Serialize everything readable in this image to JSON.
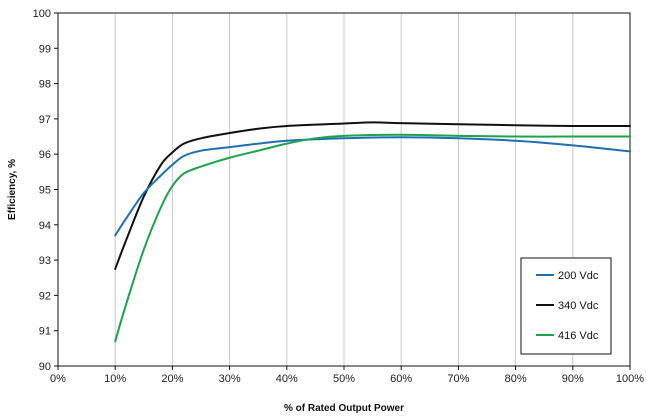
{
  "chart_data": {
    "type": "line",
    "xlabel": "% of Rated Output Power",
    "ylabel": "Efficiency, %",
    "xlim": [
      0,
      100
    ],
    "ylim": [
      90,
      100
    ],
    "xticks": [
      0,
      10,
      20,
      30,
      40,
      50,
      60,
      70,
      80,
      90,
      100
    ],
    "xtick_labels": [
      "0%",
      "10%",
      "20%",
      "30%",
      "40%",
      "50%",
      "60%",
      "70%",
      "80%",
      "90%",
      "100%"
    ],
    "yticks": [
      90,
      91,
      92,
      93,
      94,
      95,
      96,
      97,
      98,
      99,
      100
    ],
    "ytick_labels": [
      "90",
      "91",
      "92",
      "93",
      "94",
      "95",
      "96",
      "97",
      "98",
      "99",
      "100"
    ],
    "grid": "vertical",
    "legend_position": "bottom-right",
    "series": [
      {
        "name": "200 Vdc",
        "color": "#1f6fb5",
        "x": [
          10,
          12,
          15,
          18,
          20,
          22,
          25,
          30,
          35,
          40,
          50,
          60,
          70,
          80,
          90,
          100
        ],
        "y": [
          93.7,
          94.2,
          94.9,
          95.4,
          95.7,
          95.95,
          96.1,
          96.2,
          96.3,
          96.38,
          96.45,
          96.48,
          96.45,
          96.38,
          96.25,
          96.08
        ]
      },
      {
        "name": "340 Vdc",
        "color": "#111111",
        "x": [
          10,
          12,
          15,
          18,
          20,
          22,
          25,
          30,
          35,
          40,
          50,
          55,
          60,
          70,
          80,
          90,
          100
        ],
        "y": [
          92.75,
          93.6,
          94.8,
          95.7,
          96.05,
          96.3,
          96.45,
          96.6,
          96.72,
          96.8,
          96.87,
          96.9,
          96.88,
          96.85,
          96.82,
          96.8,
          96.8
        ]
      },
      {
        "name": "416 Vdc",
        "color": "#1ea34a",
        "x": [
          10,
          12,
          15,
          18,
          20,
          22,
          25,
          30,
          35,
          40,
          45,
          50,
          60,
          70,
          80,
          90,
          100
        ],
        "y": [
          90.7,
          91.8,
          93.3,
          94.5,
          95.1,
          95.45,
          95.65,
          95.9,
          96.1,
          96.3,
          96.45,
          96.52,
          96.55,
          96.52,
          96.5,
          96.5,
          96.5
        ]
      }
    ]
  }
}
